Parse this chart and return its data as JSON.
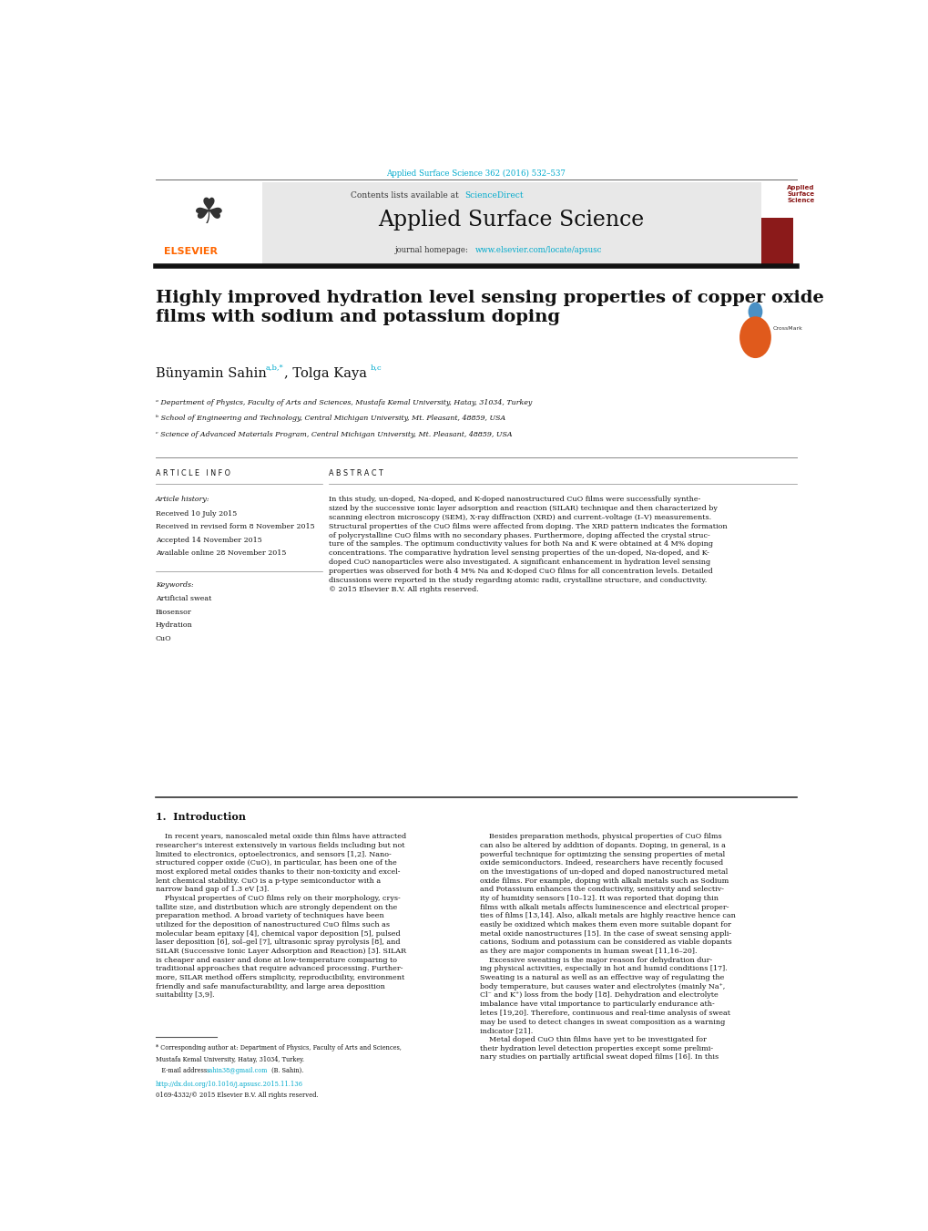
{
  "bg_color": "#ffffff",
  "page_width": 10.2,
  "page_height": 13.51,
  "journal_ref_color": "#00aacc",
  "journal_ref": "Applied Surface Science 362 (2016) 532–537",
  "header_bg": "#e8e8e8",
  "contents_text": "Contents lists available at ",
  "sciencedirect_text": "ScienceDirect",
  "sciencedirect_color": "#00aacc",
  "journal_name": "Applied Surface Science",
  "journal_homepage_prefix": "journal homepage: ",
  "journal_url": "www.elsevier.com/locate/apsusc",
  "journal_url_color": "#00aacc",
  "elsevier_color": "#ff6600",
  "title_text": "Highly improved hydration level sensing properties of copper oxide\nfilms with sodium and potassium doping",
  "affil_a": "ᵃ Department of Physics, Faculty of Arts and Sciences, Mustafa Kemal University, Hatay, 31034, Turkey",
  "affil_b": "ᵇ School of Engineering and Technology, Central Michigan University, Mt. Pleasant, 48859, USA",
  "affil_c": "ᶜ Science of Advanced Materials Program, Central Michigan University, Mt. Pleasant, 48859, USA",
  "article_info_title": "A R T I C L E   I N F O",
  "abstract_title": "A B S T R A C T",
  "article_history_label": "Article history:",
  "received": "Received 10 July 2015",
  "received_revised": "Received in revised form 8 November 2015",
  "accepted": "Accepted 14 November 2015",
  "available": "Available online 28 November 2015",
  "keywords_label": "Keywords:",
  "keywords": [
    "Artificial sweat",
    "Biosensor",
    "Hydration",
    "CuO"
  ],
  "abstract_text": "In this study, un-doped, Na-doped, and K-doped nanostructured CuO films were successfully synthe-\nsized by the successive ionic layer adsorption and reaction (SILAR) technique and then characterized by\nscanning electron microscopy (SEM), X-ray diffraction (XRD) and current–voltage (I–V) measurements.\nStructural properties of the CuO films were affected from doping. The XRD pattern indicates the formation\nof polycrystalline CuO films with no secondary phases. Furthermore, doping affected the crystal struc-\nture of the samples. The optimum conductivity values for both Na and K were obtained at 4 M% doping\nconcentrations. The comparative hydration level sensing properties of the un-doped, Na-doped, and K-\ndoped CuO nanoparticles were also investigated. A significant enhancement in hydration level sensing\nproperties was observed for both 4 M% Na and K-doped CuO films for all concentration levels. Detailed\ndiscussions were reported in the study regarding atomic radii, crystalline structure, and conductivity.\n© 2015 Elsevier B.V. All rights reserved.",
  "intro_title": "1.  Introduction",
  "intro_col1": "    In recent years, nanoscaled metal oxide thin films have attracted\nresearcher’s interest extensively in various fields including but not\nlimited to electronics, optoelectronics, and sensors [1,2]. Nano-\nstructured copper oxide (CuO), in particular, has been one of the\nmost explored metal oxides thanks to their non-toxicity and excel-\nlent chemical stability. CuO is a p-type semiconductor with a\nnarrow band gap of 1.3 eV [3].\n    Physical properties of CuO films rely on their morphology, crys-\ntallite size, and distribution which are strongly dependent on the\npreparation method. A broad variety of techniques have been\nutilized for the deposition of nanostructured CuO films such as\nmolecular beam epitaxy [4], chemical vapor deposition [5], pulsed\nlaser deposition [6], sol–gel [7], ultrasonic spray pyrolysis [8], and\nSILAR (Successive Ionic Layer Adsorption and Reaction) [3]. SILAR\nis cheaper and easier and done at low-temperature comparing to\ntraditional approaches that require advanced processing. Further-\nmore, SILAR method offers simplicity, reproducibility, environment\nfriendly and safe manufacturability, and large area deposition\nsuitability [3,9].",
  "intro_col2": "    Besides preparation methods, physical properties of CuO films\ncan also be altered by addition of dopants. Doping, in general, is a\npowerful technique for optimizing the sensing properties of metal\noxide semiconductors. Indeed, researchers have recently focused\non the investigations of un-doped and doped nanostructured metal\noxide films. For example, doping with alkali metals such as Sodium\nand Potassium enhances the conductivity, sensitivity and selectiv-\nity of humidity sensors [10–12]. It was reported that doping thin\nfilms with alkali metals affects luminescence and electrical proper-\nties of films [13,14]. Also, alkali metals are highly reactive hence can\neasily be oxidized which makes them even more suitable dopant for\nmetal oxide nanostructures [15]. In the case of sweat sensing appli-\ncations, Sodium and potassium can be considered as viable dopants\nas they are major components in human sweat [11,16–20].\n    Excessive sweating is the major reason for dehydration dur-\ning physical activities, especially in hot and humid conditions [17].\nSweating is a natural as well as an effective way of regulating the\nbody temperature, but causes water and electrolytes (mainly Na⁺,\nCl⁻ and K⁺) loss from the body [18]. Dehydration and electrolyte\nimbalance have vital importance to particularly endurance ath-\nletes [19,20]. Therefore, continuous and real-time analysis of sweat\nmay be used to detect changes in sweat composition as a warning\nindicator [21].\n    Metal doped CuO thin films have yet to be investigated for\ntheir hydration level detection properties except some prelimi-\nnary studies on partially artificial sweat doped films [16]. In this",
  "footnote_line1": "* Corresponding author at: Department of Physics, Faculty of Arts and Sciences,",
  "footnote_line2": "Mustafa Kemal University, Hatay, 31034, Turkey.",
  "footnote_line3a": "   E-mail address: ",
  "footnote_email": "sahin38@gmail.com",
  "footnote_line3b": " (B. Sahin).",
  "footnote_email_color": "#00aacc",
  "footnote_doi": "http://dx.doi.org/10.1016/j.apsusc.2015.11.136",
  "footnote_doi_color": "#00aacc",
  "footnote_issn": "0169-4332/© 2015 Elsevier B.V. All rights reserved.",
  "link_color": "#00aacc",
  "body_fontsize": 6.8,
  "title_fontsize": 14.0,
  "author_fontsize": 10.5,
  "affil_fontsize": 5.7,
  "section_fontsize": 8.0,
  "journal_name_fontsize": 17.0
}
